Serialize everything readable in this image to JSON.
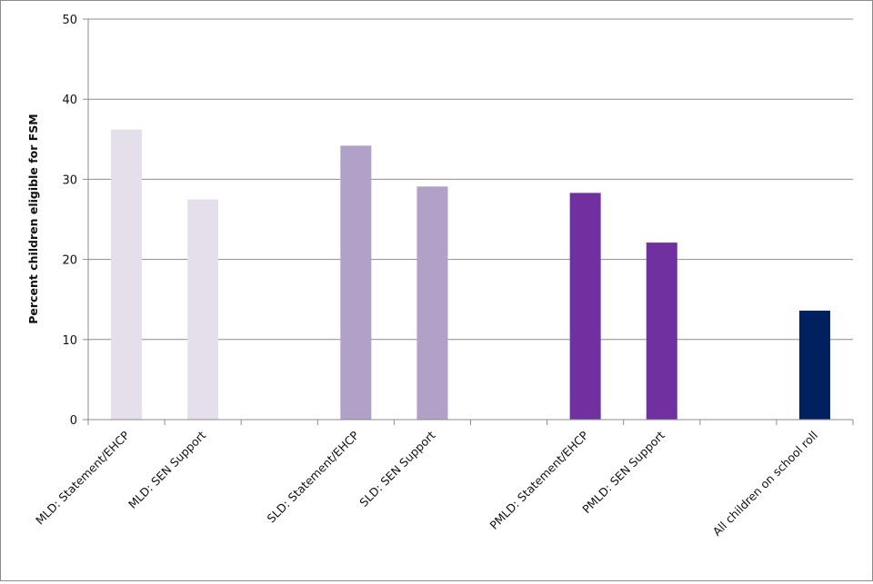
{
  "chart_data": {
    "type": "bar",
    "title": "",
    "xlabel": "",
    "ylabel": "Percent children eligible for FSM",
    "ylim": [
      0,
      50
    ],
    "yticks": [
      0,
      10,
      20,
      30,
      40,
      50
    ],
    "grid": true,
    "legend": "none",
    "slots": 10,
    "categories": [
      "MLD: Statement/EHCP",
      "MLD: SEN Support",
      "SLD: Statement/EHCP",
      "SLD: SEN Support",
      "PMLD: Statement/EHCP",
      "PMLD: SEN Support",
      "All children on school roll"
    ],
    "values": [
      36.2,
      27.5,
      34.2,
      29.1,
      28.3,
      22.1,
      13.6
    ],
    "colors": [
      "#e5dfec",
      "#e5dfec",
      "#b1a0c7",
      "#b1a0c7",
      "#7030a0",
      "#7030a0",
      "#002060"
    ]
  }
}
